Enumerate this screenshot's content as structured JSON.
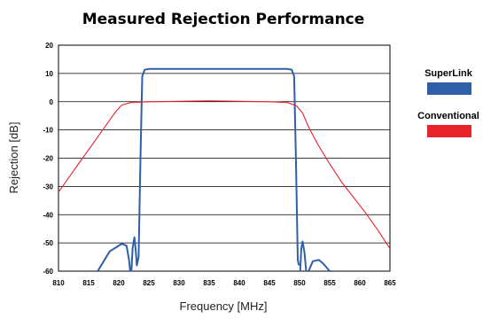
{
  "chart_data": {
    "type": "line",
    "title": "Measured Rejection Performance",
    "xlabel": "Frequency [MHz]",
    "ylabel": "Rejection [dB]",
    "xlim": [
      810,
      865
    ],
    "ylim": [
      -60,
      20
    ],
    "xticks": [
      "810",
      "815",
      "820",
      "825",
      "830",
      "835",
      "840",
      "845",
      "850",
      "855",
      "860",
      "865"
    ],
    "yticks": [
      "20",
      "10",
      "0",
      "-10",
      "-20",
      "-30",
      "-40",
      "-50",
      "-60"
    ],
    "grid": "horizontal",
    "legend_position": "right",
    "series": [
      {
        "name": "SuperLink",
        "color": "#2f5fa8",
        "segments": [
          [
            [
              816.5,
              -60
            ],
            [
              818.5,
              -53
            ],
            [
              820.5,
              -50.3
            ],
            [
              821.3,
              -51
            ],
            [
              821.7,
              -56
            ],
            [
              821.9,
              -60
            ]
          ],
          [
            [
              822.1,
              -60
            ],
            [
              822.3,
              -52
            ],
            [
              822.6,
              -48
            ],
            [
              822.8,
              -52
            ],
            [
              823.0,
              -58
            ],
            [
              823.3,
              -55
            ],
            [
              823.6,
              -20
            ],
            [
              823.9,
              9
            ],
            [
              824.3,
              11.3
            ],
            [
              825,
              11.6
            ],
            [
              848,
              11.6
            ],
            [
              848.7,
              11.3
            ],
            [
              849.1,
              9
            ],
            [
              849.4,
              -20
            ],
            [
              849.7,
              -56
            ],
            [
              849.9,
              -58
            ]
          ],
          [
            [
              850.1,
              -60
            ],
            [
              850.3,
              -52
            ],
            [
              850.5,
              -49.5
            ],
            [
              850.8,
              -53
            ],
            [
              851.1,
              -60
            ]
          ],
          [
            [
              851.5,
              -60
            ],
            [
              852.2,
              -56.5
            ],
            [
              853.2,
              -56
            ],
            [
              854,
              -57.5
            ],
            [
              855,
              -60
            ]
          ]
        ]
      },
      {
        "name": "Conventional",
        "color": "#e8232a",
        "segments": [
          [
            [
              810,
              -32
            ],
            [
              812,
              -26
            ],
            [
              814,
              -20
            ],
            [
              816,
              -14
            ],
            [
              818,
              -8
            ],
            [
              819.5,
              -3.5
            ],
            [
              820.5,
              -1.2
            ],
            [
              822,
              -0.3
            ],
            [
              825,
              0
            ],
            [
              835,
              0.3
            ],
            [
              845,
              0
            ],
            [
              848,
              -0.3
            ],
            [
              849.5,
              -1.5
            ],
            [
              850.5,
              -4
            ],
            [
              851.5,
              -9
            ],
            [
              853,
              -15
            ],
            [
              855,
              -22
            ],
            [
              857,
              -28.5
            ],
            [
              859,
              -34
            ],
            [
              861,
              -39.5
            ],
            [
              863,
              -45.5
            ],
            [
              865,
              -52
            ]
          ]
        ]
      }
    ]
  }
}
